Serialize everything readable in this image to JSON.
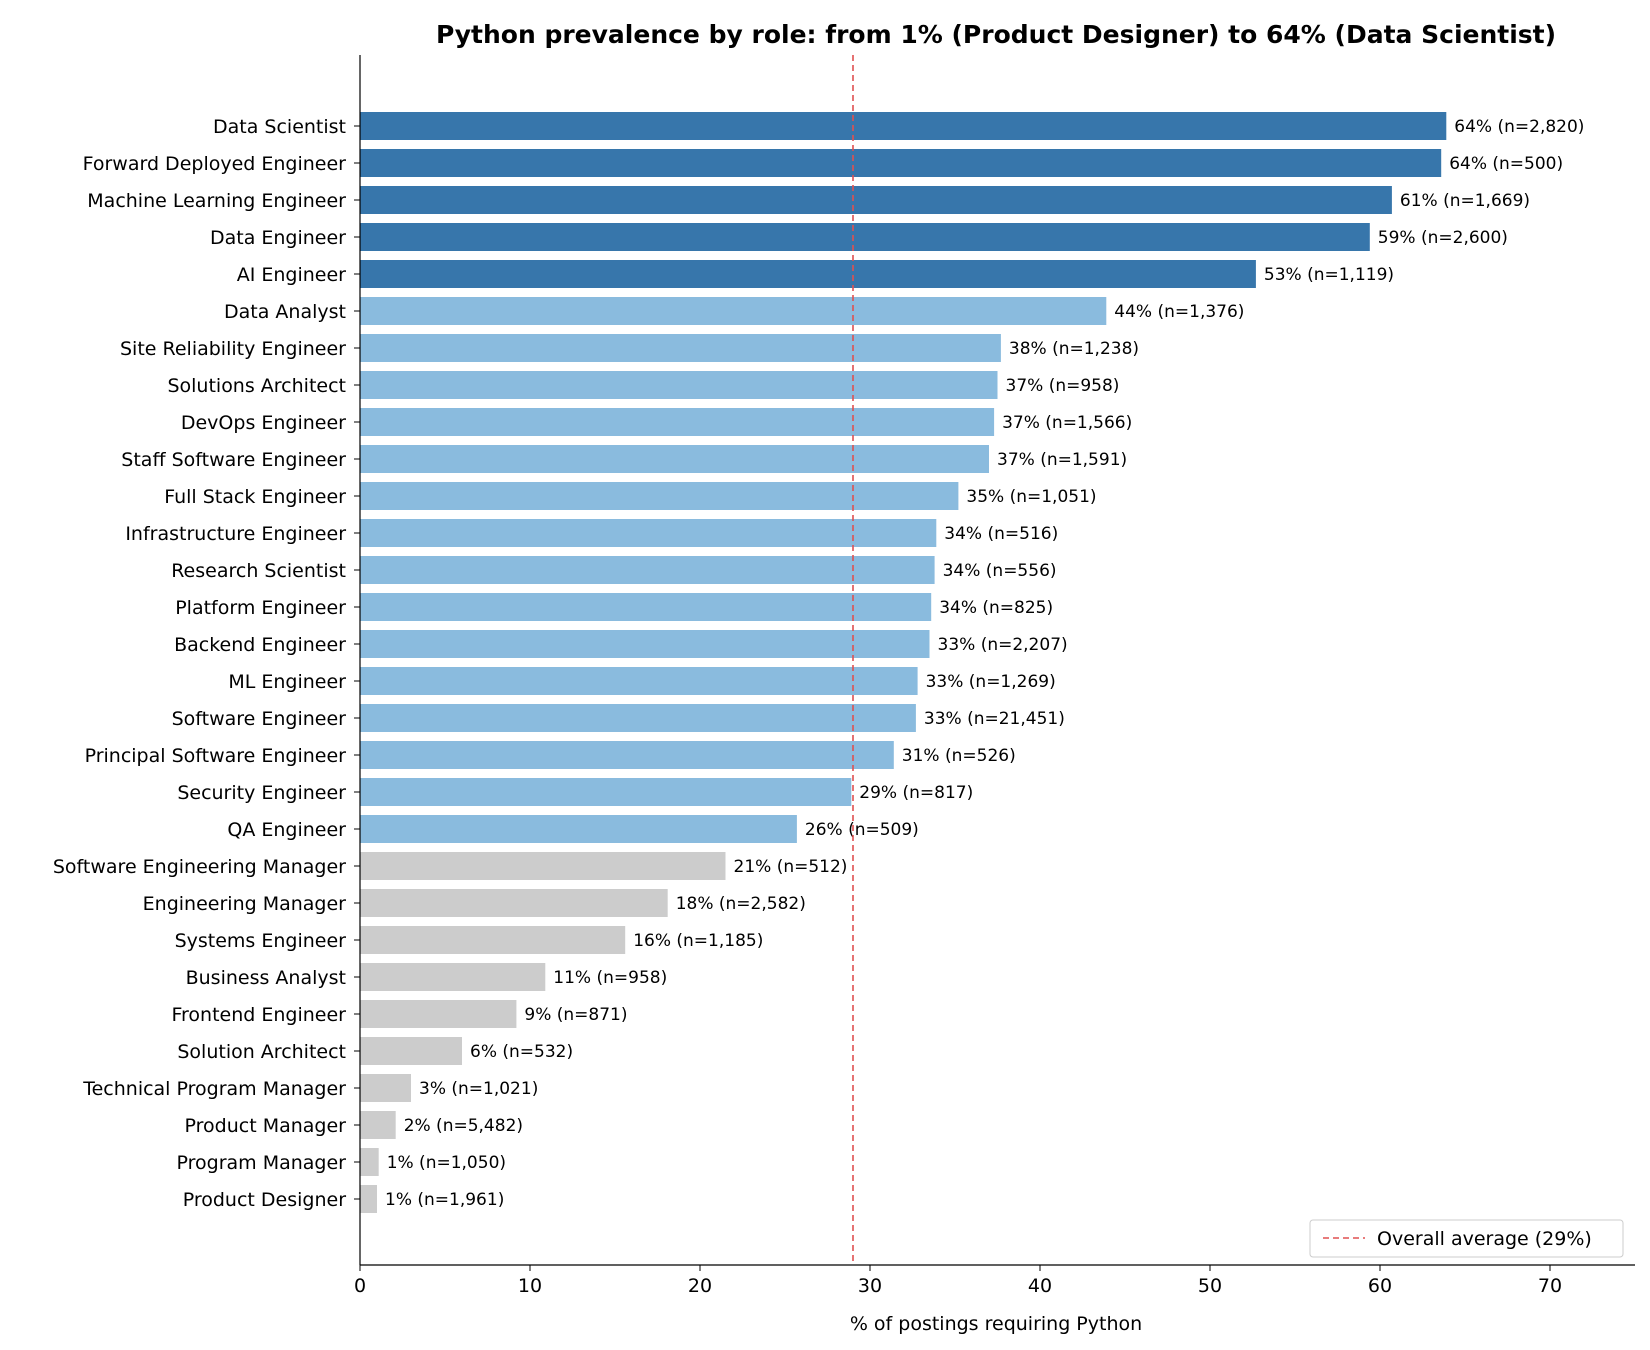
{
  "chart_data": {
    "type": "bar",
    "orientation": "horizontal",
    "title": "Python prevalence by role: from 1% (Product Designer) to 64% (Data Scientist)",
    "xlabel": "% of postings requiring Python",
    "ylabel": "",
    "xlim": [
      0,
      75
    ],
    "xticks": [
      0,
      10,
      20,
      30,
      40,
      50,
      60,
      70
    ],
    "categories": [
      "Data Scientist",
      "Forward Deployed Engineer",
      "Machine Learning Engineer",
      "Data Engineer",
      "AI Engineer",
      "Data Analyst",
      "Site Reliability Engineer",
      "Solutions Architect",
      "DevOps Engineer",
      "Staff Software Engineer",
      "Full Stack Engineer",
      "Infrastructure Engineer",
      "Research Scientist",
      "Platform Engineer",
      "Backend Engineer",
      "ML Engineer",
      "Software Engineer",
      "Principal Software Engineer",
      "Security Engineer",
      "QA Engineer",
      "Software Engineering Manager",
      "Engineering Manager",
      "Systems Engineer",
      "Business Analyst",
      "Frontend Engineer",
      "Solution Architect",
      "Technical Program Manager",
      "Product Manager",
      "Program Manager",
      "Product Designer"
    ],
    "values": [
      63.9,
      63.6,
      60.7,
      59.4,
      52.7,
      43.9,
      37.7,
      37.5,
      37.3,
      37.0,
      35.2,
      33.9,
      33.8,
      33.6,
      33.5,
      32.8,
      32.7,
      31.4,
      28.9,
      25.7,
      21.5,
      18.1,
      15.6,
      10.9,
      9.2,
      6.0,
      3.0,
      2.1,
      1.1,
      1.0
    ],
    "data_labels": [
      "64% (n=2,820)",
      "64% (n=500)",
      "61% (n=1,669)",
      "59% (n=2,600)",
      "53% (n=1,119)",
      "44% (n=1,376)",
      "38% (n=1,238)",
      "37% (n=958)",
      "37% (n=1,566)",
      "37% (n=1,591)",
      "35% (n=1,051)",
      "34% (n=516)",
      "34% (n=556)",
      "34% (n=825)",
      "33% (n=2,207)",
      "33% (n=1,269)",
      "33% (n=21,451)",
      "31% (n=526)",
      "29% (n=817)",
      "26% (n=509)",
      "21% (n=512)",
      "18% (n=2,582)",
      "16% (n=1,185)",
      "11% (n=958)",
      "9% (n=871)",
      "6% (n=532)",
      "3% (n=1,021)",
      "2% (n=5,482)",
      "1% (n=1,050)",
      "1% (n=1,961)"
    ],
    "tiers": [
      "high",
      "high",
      "high",
      "high",
      "high",
      "mid",
      "mid",
      "mid",
      "mid",
      "mid",
      "mid",
      "mid",
      "mid",
      "mid",
      "mid",
      "mid",
      "mid",
      "mid",
      "mid",
      "mid",
      "low",
      "low",
      "low",
      "low",
      "low",
      "low",
      "low",
      "low",
      "low",
      "low"
    ],
    "tier_colors": {
      "high": "#3776ab",
      "mid": "#8abbde",
      "low": "#cccccc"
    },
    "reference_line": {
      "value": 29,
      "label": "Overall average (29%)",
      "color": "#e05050",
      "style": "dashed"
    },
    "legend_position": "bottom-right",
    "grid": false
  }
}
